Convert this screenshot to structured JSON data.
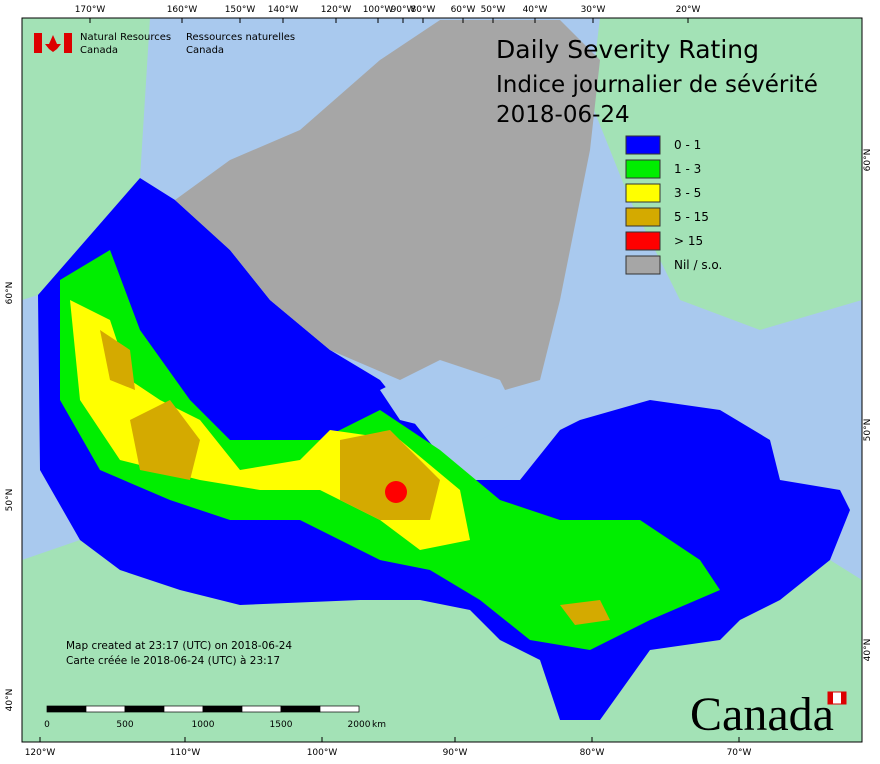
{
  "header": {
    "agency_en_1": "Natural Resources",
    "agency_en_2": "Canada",
    "agency_fr_1": "Ressources naturelles",
    "agency_fr_2": "Canada"
  },
  "title": {
    "line1": "Daily Severity Rating",
    "line2": "Indice journalier de sévérité",
    "date": "2018-06-24"
  },
  "legend": [
    {
      "label": "0 - 1",
      "color": "#0000ff"
    },
    {
      "label": "1 - 3",
      "color": "#00ee00"
    },
    {
      "label": "3 - 5",
      "color": "#ffff00"
    },
    {
      "label": "5 - 15",
      "color": "#d4aa00"
    },
    {
      "label": "> 15",
      "color": "#ff0000"
    },
    {
      "label": "Nil / s.o.",
      "color": "#a6a6a6"
    }
  ],
  "axes": {
    "top": [
      "170°W",
      "160°W",
      "150°W",
      "140°W",
      "120°W",
      "100°W",
      "90°W",
      "80°W",
      "60°W",
      "50°W",
      "40°W",
      "30°W",
      "20°W"
    ],
    "bottom": [
      "120°W",
      "110°W",
      "100°W",
      "90°W",
      "80°W",
      "70°W"
    ],
    "left": [
      "60°N",
      "50°N",
      "40°N"
    ],
    "right": [
      "60°N",
      "50°N",
      "40°N"
    ]
  },
  "footer": {
    "created_en": "Map created at 23:17 (UTC) on 2018-06-24",
    "created_fr": "Carte créée le 2018-06-24 (UTC) à 23:17"
  },
  "scale_bar": {
    "labels": [
      "0",
      "500",
      "1000",
      "1500",
      "2000"
    ],
    "unit": "km"
  },
  "wordmark": "Canada"
}
